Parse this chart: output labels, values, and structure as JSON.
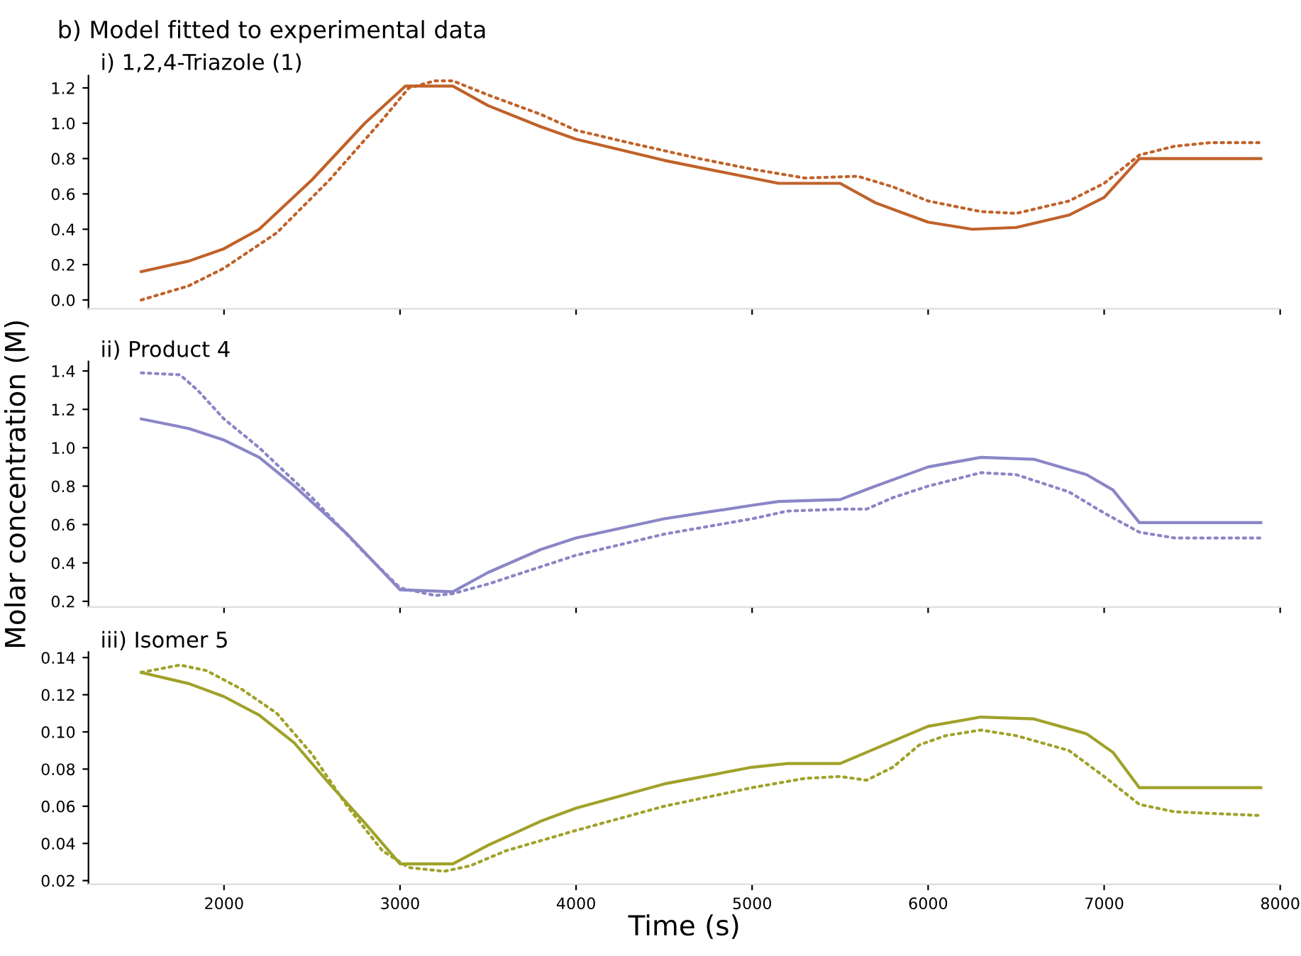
{
  "chart_data": [
    {
      "type": "line",
      "title": "b) Model fitted to experimental data",
      "subtitle": "i) 1,2,4-Triazole (1)",
      "xlim": [
        1230,
        8000
      ],
      "xticks": [
        {
          "value": 2000,
          "label": null
        },
        {
          "value": 3000,
          "label": null
        },
        {
          "value": 4000,
          "label": null
        },
        {
          "value": 5000,
          "label": null
        },
        {
          "value": 6000,
          "label": null
        },
        {
          "value": 7000,
          "label": null
        },
        {
          "value": 8000,
          "label": null
        }
      ],
      "ylim": [
        -0.05,
        1.27
      ],
      "yticks": [
        {
          "value": 0.0,
          "label": "0.0"
        },
        {
          "value": 0.2,
          "label": "0.2"
        },
        {
          "value": 0.4,
          "label": "0.4"
        },
        {
          "value": 0.6,
          "label": "0.6"
        },
        {
          "value": 0.8,
          "label": "0.8"
        },
        {
          "value": 1.0,
          "label": "1.0"
        },
        {
          "value": 1.2,
          "label": "1.2"
        }
      ],
      "tick_labels": "y",
      "grid": false,
      "marker": "none",
      "series": [
        {
          "color": "#c0622a",
          "line_style": "solid",
          "x": [
            1530,
            1800,
            2000,
            2200,
            2500,
            2800,
            3030,
            3300,
            3500,
            3800,
            4000,
            4500,
            5000,
            5150,
            5500,
            5700,
            6000,
            6250,
            6500,
            6800,
            7000,
            7200,
            7890
          ],
          "values": [
            0.16,
            0.22,
            0.29,
            0.4,
            0.68,
            1.0,
            1.21,
            1.21,
            1.1,
            0.98,
            0.91,
            0.79,
            0.69,
            0.66,
            0.66,
            0.55,
            0.44,
            0.4,
            0.41,
            0.48,
            0.58,
            0.8,
            0.8
          ]
        },
        {
          "color": "#c0622a",
          "line_style": "dotted",
          "x": [
            1530,
            1800,
            2000,
            2300,
            2600,
            2900,
            3050,
            3200,
            3300,
            3500,
            3800,
            4000,
            4300,
            4700,
            5000,
            5300,
            5600,
            5800,
            6000,
            6300,
            6500,
            6800,
            7000,
            7200,
            7400,
            7600,
            7890
          ],
          "values": [
            0.0,
            0.08,
            0.18,
            0.38,
            0.68,
            1.02,
            1.2,
            1.24,
            1.24,
            1.16,
            1.05,
            0.96,
            0.89,
            0.8,
            0.74,
            0.69,
            0.7,
            0.64,
            0.56,
            0.5,
            0.49,
            0.56,
            0.66,
            0.82,
            0.87,
            0.89,
            0.89
          ]
        }
      ]
    },
    {
      "type": "line",
      "title": "ii) Product 4",
      "ylabel": "Molar concentration (M)",
      "xlim": [
        1230,
        8000
      ],
      "xticks": [
        {
          "value": 2000,
          "label": null
        },
        {
          "value": 3000,
          "label": null
        },
        {
          "value": 4000,
          "label": null
        },
        {
          "value": 5000,
          "label": null
        },
        {
          "value": 6000,
          "label": null
        },
        {
          "value": 7000,
          "label": null
        },
        {
          "value": 8000,
          "label": null
        }
      ],
      "ylim": [
        0.17,
        1.45
      ],
      "yticks": [
        0.2,
        0.4,
        0.6,
        0.8,
        {
          "value": 1.0,
          "label": "1.0"
        },
        1.2,
        1.4
      ],
      "tick_labels": "y",
      "grid": false,
      "marker": "none",
      "series": [
        {
          "color": "#8b86c6",
          "line_style": "solid",
          "x": [
            1530,
            1800,
            2000,
            2200,
            2400,
            2700,
            3000,
            3300,
            3500,
            3800,
            4000,
            4500,
            5000,
            5150,
            5500,
            5700,
            6000,
            6300,
            6600,
            6900,
            7050,
            7200,
            7890
          ],
          "values": [
            1.15,
            1.1,
            1.04,
            0.95,
            0.8,
            0.55,
            0.26,
            0.25,
            0.35,
            0.47,
            0.53,
            0.63,
            0.7,
            0.72,
            0.73,
            0.8,
            0.9,
            0.95,
            0.94,
            0.86,
            0.78,
            0.61,
            0.61
          ]
        },
        {
          "color": "#8b86c6",
          "line_style": "dotted",
          "x": [
            1530,
            1750,
            1850,
            2000,
            2200,
            2500,
            2800,
            3000,
            3200,
            3300,
            3500,
            3800,
            4000,
            4500,
            5000,
            5200,
            5500,
            5650,
            5800,
            6000,
            6300,
            6500,
            6800,
            7000,
            7200,
            7400,
            7890
          ],
          "values": [
            1.39,
            1.38,
            1.3,
            1.15,
            1.0,
            0.74,
            0.45,
            0.27,
            0.23,
            0.24,
            0.29,
            0.38,
            0.44,
            0.55,
            0.63,
            0.67,
            0.68,
            0.68,
            0.74,
            0.8,
            0.87,
            0.86,
            0.77,
            0.66,
            0.56,
            0.53,
            0.53
          ]
        }
      ]
    },
    {
      "type": "line",
      "title": "iii) Isomer 5",
      "xlabel": "Time (s)",
      "xlim": [
        1230,
        8000
      ],
      "xticks": [
        2000,
        3000,
        4000,
        5000,
        6000,
        7000,
        8000
      ],
      "ylim": [
        0.018,
        0.143
      ],
      "yticks": [
        {
          "value": 0.02,
          "label": "0.02"
        },
        {
          "value": 0.04,
          "label": "0.04"
        },
        {
          "value": 0.06,
          "label": "0.06"
        },
        {
          "value": 0.08,
          "label": "0.08"
        },
        {
          "value": 0.1,
          "label": "0.10"
        },
        {
          "value": 0.12,
          "label": "0.12"
        },
        {
          "value": 0.14,
          "label": "0.14"
        }
      ],
      "grid": false,
      "marker": "none",
      "series": [
        {
          "color": "#a0a22a",
          "line_style": "solid",
          "x": [
            1530,
            1800,
            2000,
            2200,
            2400,
            2600,
            2800,
            3000,
            3300,
            3500,
            3800,
            4000,
            4500,
            5000,
            5200,
            5500,
            5700,
            6000,
            6300,
            6600,
            6900,
            7050,
            7200,
            7890
          ],
          "values": [
            0.132,
            0.126,
            0.119,
            0.109,
            0.094,
            0.072,
            0.051,
            0.029,
            0.029,
            0.039,
            0.052,
            0.059,
            0.072,
            0.081,
            0.083,
            0.083,
            0.091,
            0.103,
            0.108,
            0.107,
            0.099,
            0.089,
            0.07,
            0.07
          ]
        },
        {
          "color": "#a0a22a",
          "line_style": "dotted",
          "x": [
            1530,
            1750,
            1900,
            2100,
            2300,
            2500,
            2700,
            2900,
            3050,
            3250,
            3400,
            3600,
            4000,
            4500,
            5000,
            5300,
            5500,
            5650,
            5800,
            5950,
            6100,
            6300,
            6500,
            6800,
            7000,
            7200,
            7400,
            7890
          ],
          "values": [
            0.132,
            0.136,
            0.133,
            0.123,
            0.11,
            0.088,
            0.06,
            0.036,
            0.027,
            0.025,
            0.028,
            0.036,
            0.047,
            0.06,
            0.07,
            0.075,
            0.076,
            0.074,
            0.081,
            0.093,
            0.098,
            0.101,
            0.098,
            0.09,
            0.076,
            0.061,
            0.057,
            0.055
          ]
        }
      ]
    }
  ]
}
